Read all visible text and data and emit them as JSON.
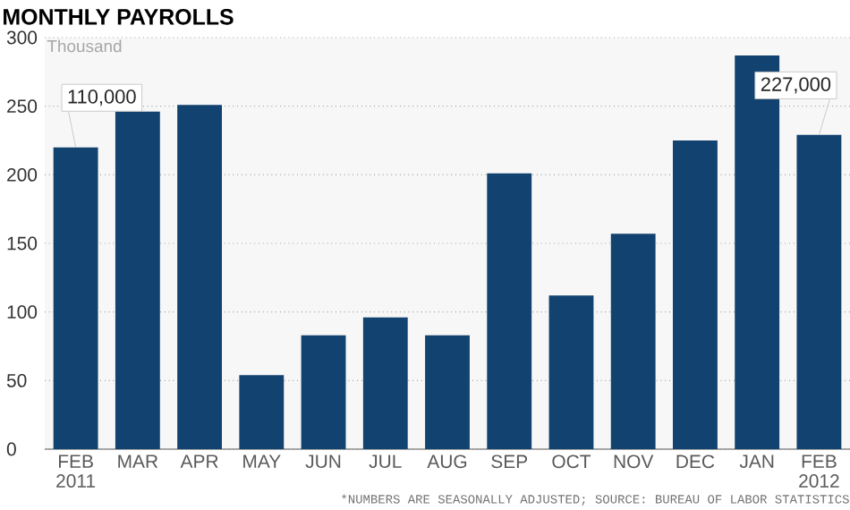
{
  "chart_data": {
    "type": "bar",
    "title": "MONTHLY PAYROLLS",
    "ylabel": "Thousand",
    "categories": [
      "FEB 2011",
      "MAR",
      "APR",
      "MAY",
      "JUN",
      "JUL",
      "AUG",
      "SEP",
      "OCT",
      "NOV",
      "DEC",
      "JAN",
      "FEB 2012"
    ],
    "values": [
      220,
      246,
      251,
      54,
      83,
      96,
      83,
      201,
      112,
      157,
      225,
      287,
      229
    ],
    "color": "#12426f",
    "ylim": [
      0,
      300
    ],
    "yticks": [
      0,
      50,
      100,
      150,
      200,
      250,
      300
    ],
    "grid": "y",
    "annotations": [
      {
        "text": "110,000",
        "x": "FEB 2011",
        "y": 220
      },
      {
        "text": "227,000",
        "x": "FEB 2012",
        "y": 229
      },
      "*NUMBERS ARE SEASONALLY ADJUSTED; SOURCE: BUREAU OF LABOR STATISTICS"
    ]
  }
}
